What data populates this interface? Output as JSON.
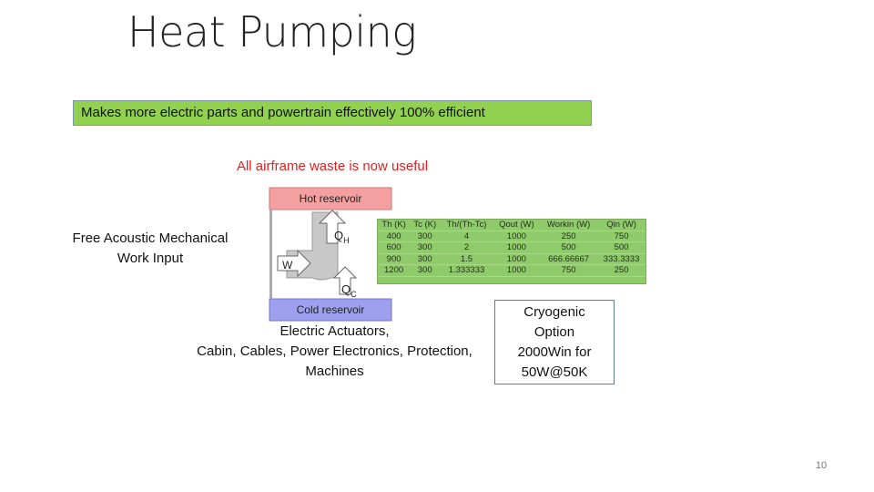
{
  "slide": {
    "title": "Heat Pumping",
    "banner": "Makes more electric parts and powertrain effectively 100% efficient",
    "red_note": "All airframe waste is now useful",
    "left_label": [
      "Free Acoustic Mechanical",
      "Work Input"
    ],
    "bottom_label": [
      "Electric Actuators,",
      "Cabin, Cables, Power Electronics, Protection,",
      "Machines"
    ],
    "cryo_box": [
      "Cryogenic",
      "Option",
      "2000Win for",
      "50W@50K"
    ],
    "page_number": "10"
  },
  "diagram": {
    "hot_label": "Hot reservoir",
    "cold_label": "Cold reservoir",
    "qh": "Q",
    "qh_sub": "H",
    "qc": "Q",
    "qc_sub": "C",
    "w": "W",
    "colors": {
      "hot": "#f4a0a0",
      "cold": "#9f9ff0",
      "pipe": "#c8c8c8"
    }
  },
  "table": {
    "headers": [
      "Th (K)",
      "Tc (K)",
      "Th/(Th-Tc)",
      "Qout (W)",
      "Workin (W)",
      "Qin (W)"
    ],
    "rows": [
      [
        "400",
        "300",
        "4",
        "1000",
        "250",
        "750"
      ],
      [
        "600",
        "300",
        "2",
        "1000",
        "500",
        "500"
      ],
      [
        "900",
        "300",
        "1.5",
        "1000",
        "666.66667",
        "333.3333"
      ],
      [
        "1200",
        "300",
        "1.333333",
        "1000",
        "750",
        "250"
      ]
    ]
  }
}
